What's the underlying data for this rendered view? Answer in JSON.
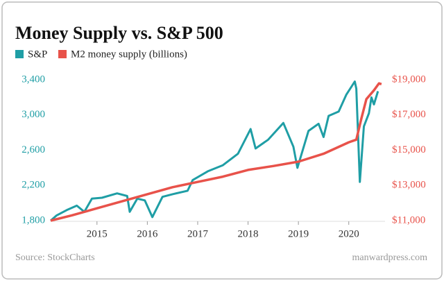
{
  "chart_data": {
    "type": "line",
    "title": "Money Supply vs. S&P 500",
    "source": "Source: StockCharts",
    "credit": "manwardpress.com",
    "xlim": [
      2014.08,
      2020.72
    ],
    "xticks": [
      2015,
      2016,
      2017,
      2018,
      2019,
      2020
    ],
    "ylim": [
      1800,
      3400
    ],
    "yticks": [
      {
        "value": 1800,
        "label": "1,800"
      },
      {
        "value": 2200,
        "label": "2,200"
      },
      {
        "value": 2600,
        "label": "2,600"
      },
      {
        "value": 3000,
        "label": "3,000"
      },
      {
        "value": 3400,
        "label": "3,400"
      }
    ],
    "y2lim": [
      11000,
      19000
    ],
    "y2ticks": [
      {
        "value": 11000,
        "label": "$11,000"
      },
      {
        "value": 13000,
        "label": "$13,000"
      },
      {
        "value": 15000,
        "label": "$15,000"
      },
      {
        "value": 17000,
        "label": "$17,000"
      },
      {
        "value": 19000,
        "label": "$19,000"
      }
    ],
    "series": [
      {
        "name": "S&P",
        "color": "#1f9ea5",
        "x": [
          2014.08,
          2014.2,
          2014.4,
          2014.6,
          2014.75,
          2014.9,
          2015.1,
          2015.4,
          2015.6,
          2015.65,
          2015.8,
          2015.95,
          2016.1,
          2016.3,
          2016.5,
          2016.8,
          2016.9,
          2017.2,
          2017.5,
          2017.8,
          2018.05,
          2018.15,
          2018.4,
          2018.7,
          2018.9,
          2018.98,
          2019.2,
          2019.4,
          2019.5,
          2019.6,
          2019.8,
          2019.95,
          2020.12,
          2020.15,
          2020.22,
          2020.3,
          2020.4,
          2020.45,
          2020.5,
          2020.58
        ],
        "values": [
          1800,
          1860,
          1920,
          1970,
          1900,
          2050,
          2060,
          2110,
          2080,
          1900,
          2050,
          2030,
          1840,
          2070,
          2100,
          2140,
          2260,
          2360,
          2430,
          2560,
          2840,
          2620,
          2720,
          2910,
          2640,
          2400,
          2820,
          2900,
          2750,
          2990,
          3040,
          3230,
          3380,
          3300,
          2240,
          2870,
          3020,
          3200,
          3120,
          3270
        ]
      },
      {
        "name": "M2 money supply (billions)",
        "color": "#e8524a",
        "axis": "y2",
        "x": [
          2014.08,
          2014.5,
          2015,
          2015.5,
          2016,
          2016.5,
          2017,
          2017.5,
          2018,
          2018.5,
          2019,
          2019.5,
          2020,
          2020.15,
          2020.25,
          2020.35,
          2020.5,
          2020.6,
          2020.65
        ],
        "values": [
          11000,
          11300,
          11700,
          12100,
          12500,
          12900,
          13200,
          13500,
          13880,
          14100,
          14350,
          14800,
          15450,
          15600,
          16800,
          17900,
          18400,
          18800,
          18750
        ]
      }
    ]
  }
}
